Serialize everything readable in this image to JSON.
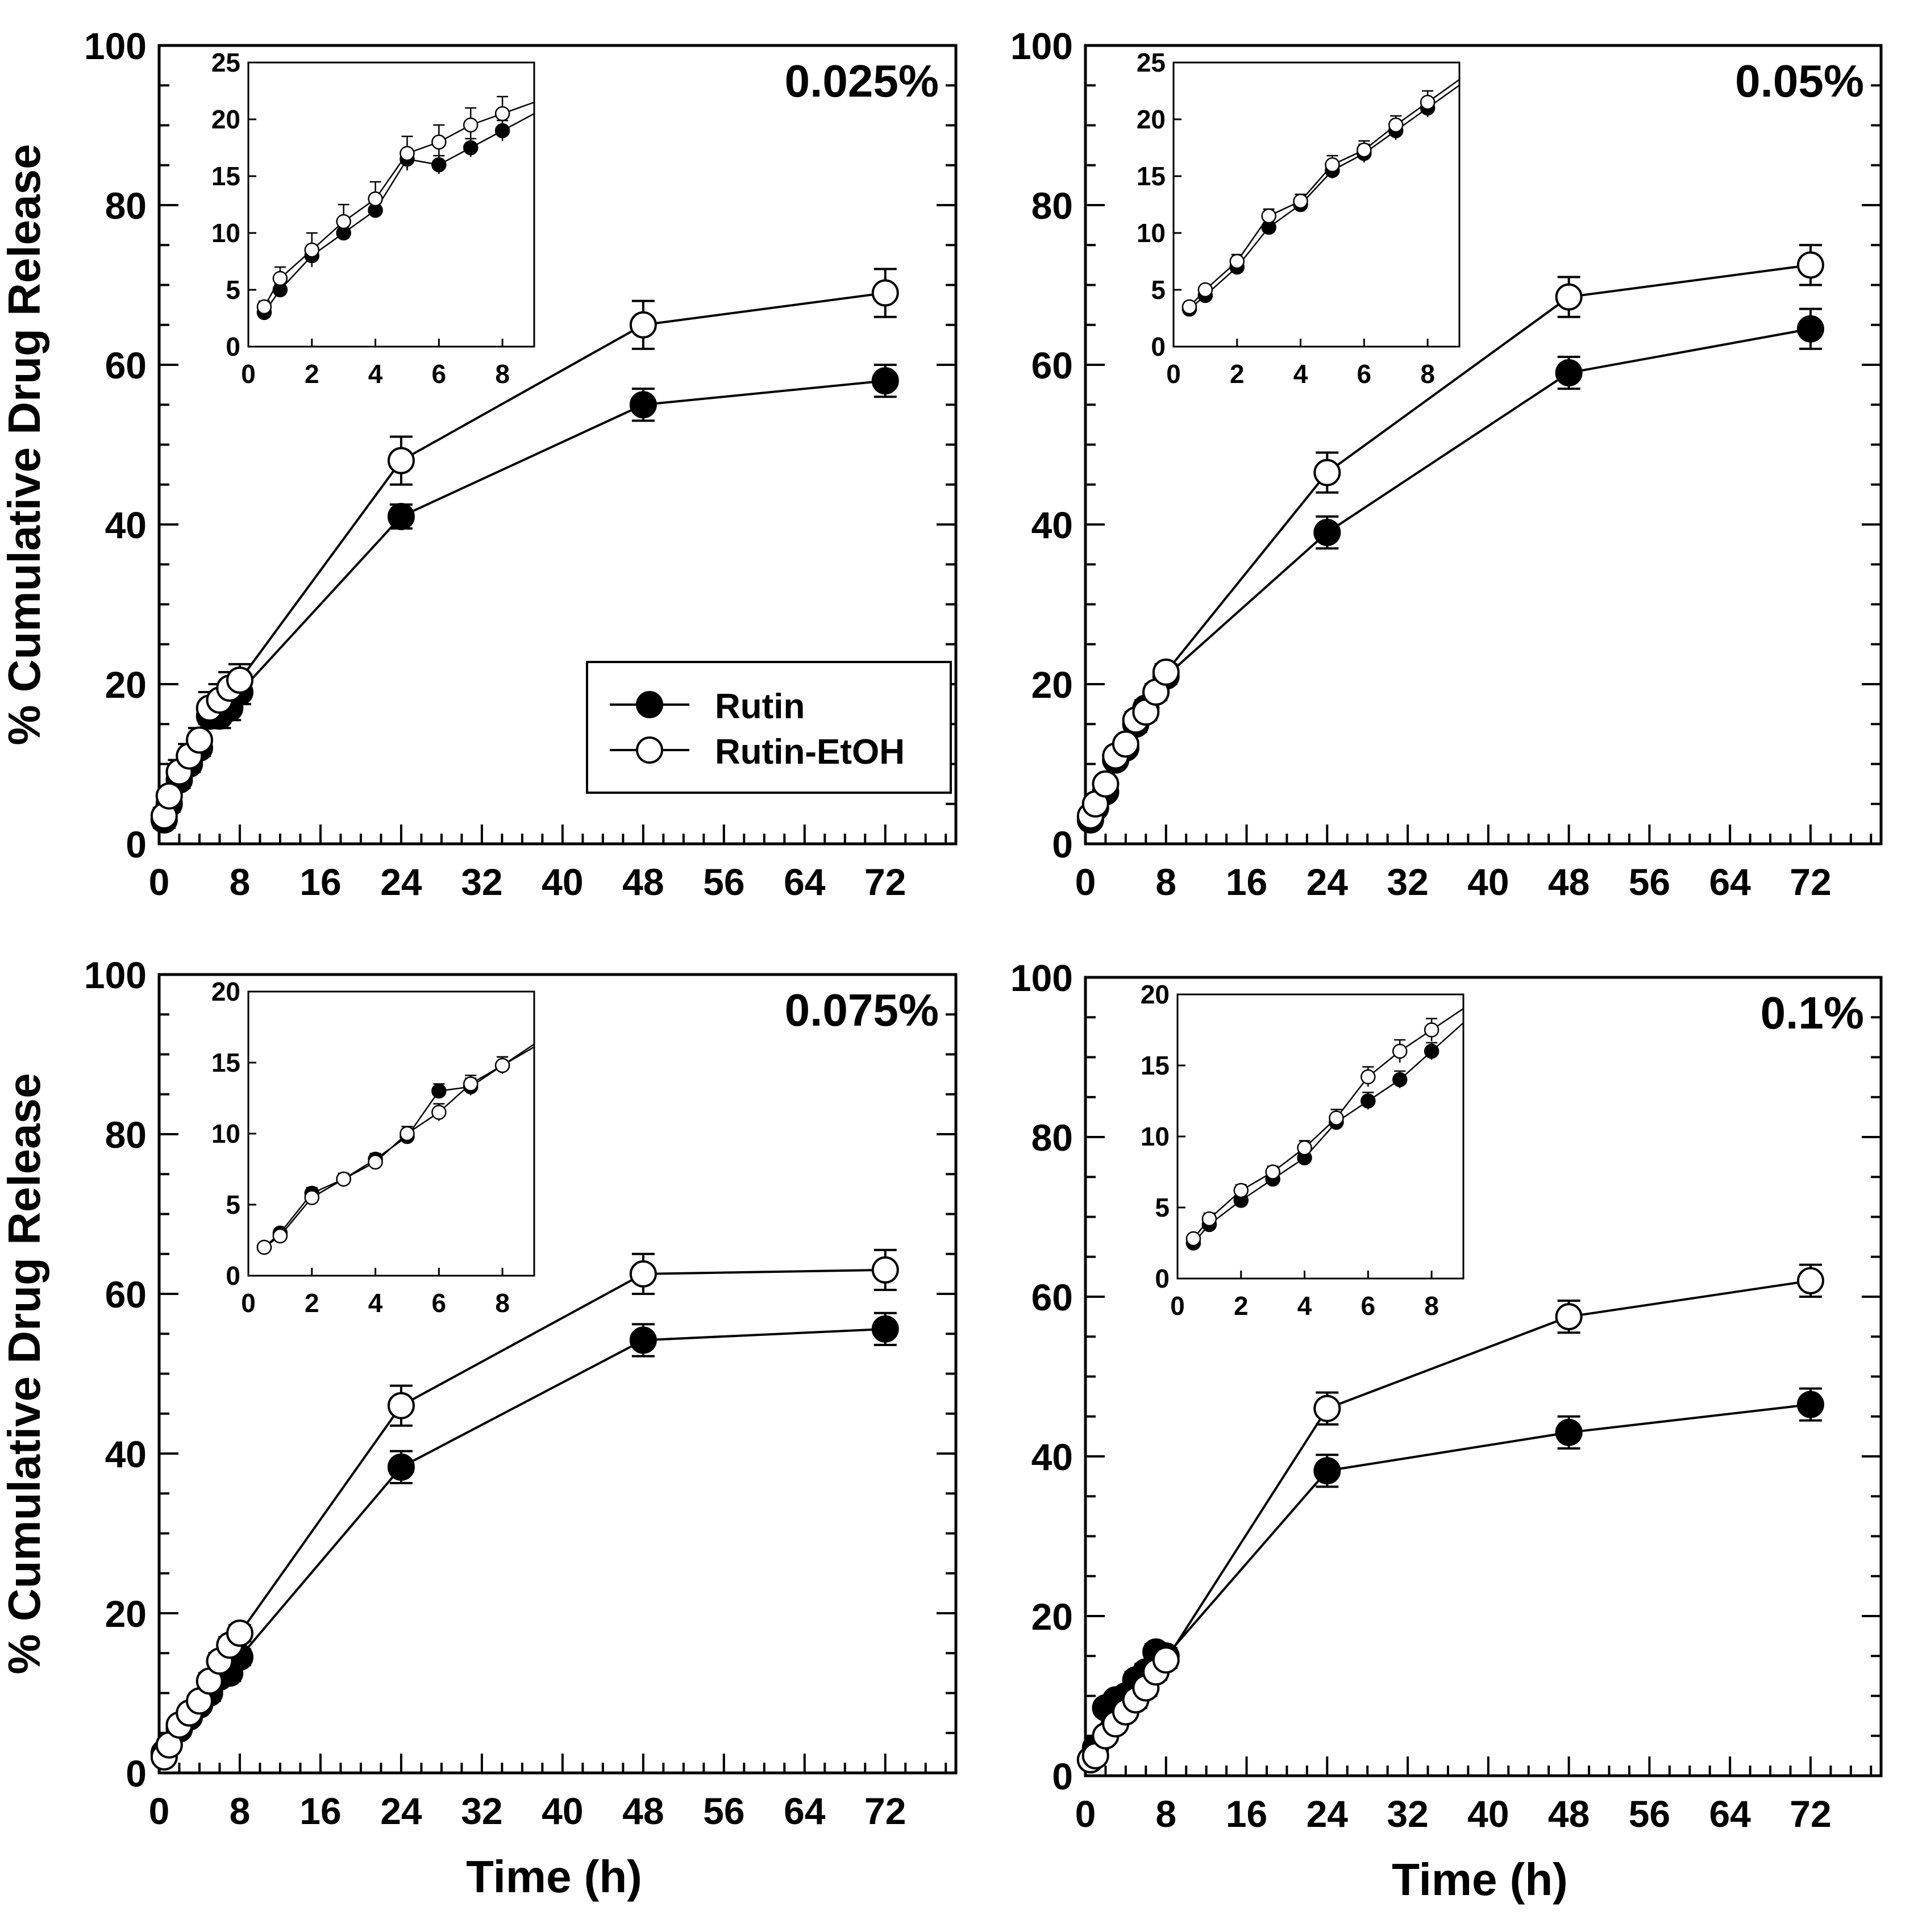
{
  "figure": {
    "y_axis_label": "% Cumulative Drug Release",
    "x_axis_label": "Time (h)",
    "legend": {
      "series": [
        "Rutin",
        "Rutin-EtOH"
      ],
      "placement": "inside-lower-right of top-left panel"
    }
  },
  "chart_data": [
    {
      "type": "line",
      "panel_label": "0.025%",
      "xlabel": "",
      "ylabel": "% Cumulative Drug Release",
      "xlim": [
        0,
        79
      ],
      "ylim": [
        0,
        100
      ],
      "xticks": [
        0,
        8,
        16,
        24,
        32,
        40,
        48,
        56,
        64,
        72
      ],
      "yticks": [
        0,
        20,
        40,
        60,
        80,
        100
      ],
      "series": [
        {
          "name": "Rutin",
          "marker": "filled-circle",
          "x": [
            0.5,
            1,
            2,
            3,
            4,
            5,
            6,
            7,
            8,
            24,
            48,
            72
          ],
          "y": [
            3,
            5,
            8,
            10,
            12,
            16,
            16,
            17,
            19,
            41,
            55,
            58
          ],
          "err": [
            1,
            1,
            1,
            1,
            1,
            1.5,
            1.5,
            1.5,
            1.5,
            1.5,
            2,
            2
          ]
        },
        {
          "name": "Rutin-EtOH",
          "marker": "open-circle",
          "x": [
            0.5,
            1,
            2,
            3,
            4,
            5,
            6,
            7,
            8,
            24,
            48,
            72
          ],
          "y": [
            3.5,
            6,
            9,
            11,
            13,
            17,
            18,
            19.5,
            20.5,
            48,
            65,
            69
          ],
          "err": [
            1,
            1,
            1.5,
            1.5,
            1.5,
            2,
            2,
            2,
            2,
            3,
            3,
            3
          ]
        }
      ],
      "inset": {
        "xlim": [
          0,
          9
        ],
        "ylim": [
          0,
          25
        ],
        "xticks": [
          0,
          2,
          4,
          6,
          8
        ],
        "yticks": [
          0,
          5,
          10,
          15,
          20,
          25
        ],
        "series": [
          {
            "name": "Rutin",
            "x": [
              0.5,
              1,
              2,
              3,
              4,
              5,
              6,
              7,
              8
            ],
            "y": [
              3,
              5,
              8,
              10,
              12,
              16.5,
              16,
              17.5,
              19
            ],
            "err": [
              0.4,
              0.5,
              0.6,
              0.6,
              0.6,
              0.8,
              0.8,
              0.8,
              0.9
            ],
            "trend": [
              0.2,
              0.8
            ]
          },
          {
            "name": "Rutin-EtOH",
            "x": [
              0.5,
              1,
              2,
              3,
              4,
              5,
              6,
              7,
              8
            ],
            "y": [
              3.5,
              6,
              8.5,
              11,
              13,
              17,
              18,
              19.5,
              20.5
            ],
            "err": [
              0.5,
              1,
              1.5,
              1.5,
              1.5,
              1.5,
              1.5,
              1.5,
              1.5
            ],
            "trend": [
              0.2,
              0.8
            ]
          }
        ]
      }
    },
    {
      "type": "line",
      "panel_label": "0.05%",
      "xlabel": "",
      "ylabel": "",
      "xlim": [
        0,
        79
      ],
      "ylim": [
        0,
        100
      ],
      "xticks": [
        0,
        8,
        16,
        24,
        32,
        40,
        48,
        56,
        64,
        72
      ],
      "yticks": [
        0,
        20,
        40,
        60,
        80,
        100
      ],
      "series": [
        {
          "name": "Rutin",
          "marker": "filled-circle",
          "x": [
            0.5,
            1,
            2,
            3,
            4,
            5,
            6,
            7,
            8,
            24,
            48,
            72
          ],
          "y": [
            3,
            4.5,
            6.5,
            10.5,
            12,
            15,
            17,
            19,
            21,
            39,
            59,
            64.5
          ],
          "err": [
            0.5,
            0.5,
            0.8,
            0.8,
            0.8,
            1,
            1,
            1,
            1,
            2,
            2,
            2.5
          ]
        },
        {
          "name": "Rutin-EtOH",
          "marker": "open-circle",
          "x": [
            0.5,
            1,
            2,
            3,
            4,
            5,
            6,
            7,
            8,
            24,
            48,
            72
          ],
          "y": [
            3.5,
            5,
            7.5,
            11,
            12.5,
            15.5,
            16.5,
            19,
            21.5,
            46.5,
            68.5,
            72.5
          ],
          "err": [
            0.5,
            0.5,
            0.8,
            0.8,
            0.8,
            1,
            1,
            1,
            1,
            2.5,
            2.5,
            2.5
          ]
        }
      ],
      "inset": {
        "xlim": [
          0,
          9
        ],
        "ylim": [
          0,
          25
        ],
        "xticks": [
          0,
          2,
          4,
          6,
          8
        ],
        "yticks": [
          0,
          5,
          10,
          15,
          20,
          25
        ],
        "series": [
          {
            "name": "Rutin",
            "x": [
              0.5,
              1,
              2,
              3,
              4,
              5,
              6,
              7,
              8
            ],
            "y": [
              3.3,
              4.5,
              7,
              10.5,
              12.5,
              15.5,
              17,
              19,
              21
            ],
            "err": [
              0.4,
              0.4,
              0.6,
              0.6,
              0.6,
              0.7,
              0.8,
              0.8,
              0.8
            ],
            "trend": [
              0.2,
              0.8
            ]
          },
          {
            "name": "Rutin-EtOH",
            "x": [
              0.5,
              1,
              2,
              3,
              4,
              5,
              6,
              7,
              8
            ],
            "y": [
              3.5,
              5,
              7.5,
              11.5,
              12.8,
              16,
              17.3,
              19.5,
              21.5
            ],
            "err": [
              0.4,
              0.4,
              0.6,
              0.6,
              0.6,
              0.8,
              0.8,
              0.8,
              1
            ],
            "trend": [
              0.2,
              0.8
            ]
          }
        ]
      }
    },
    {
      "type": "line",
      "panel_label": "0.075%",
      "xlabel": "Time (h)",
      "ylabel": "% Cumulative Drug Release",
      "xlim": [
        0,
        79
      ],
      "ylim": [
        0,
        100
      ],
      "xticks": [
        0,
        8,
        16,
        24,
        32,
        40,
        48,
        56,
        64,
        72
      ],
      "yticks": [
        0,
        20,
        40,
        60,
        80,
        100
      ],
      "series": [
        {
          "name": "Rutin",
          "marker": "filled-circle",
          "x": [
            0.5,
            1,
            2,
            3,
            4,
            5,
            6,
            7,
            8,
            24,
            48,
            72
          ],
          "y": [
            2.5,
            3.5,
            5.5,
            7,
            8.5,
            10,
            12,
            12.5,
            14.5,
            38.3,
            54.2,
            55.6
          ],
          "err": [
            0.5,
            0.5,
            0.8,
            0.8,
            0.8,
            1,
            1,
            1,
            1,
            2,
            2,
            2
          ]
        },
        {
          "name": "Rutin-EtOH",
          "marker": "open-circle",
          "x": [
            0.5,
            1,
            2,
            3,
            4,
            5,
            6,
            7,
            8,
            24,
            48,
            72
          ],
          "y": [
            2,
            3.5,
            6,
            7.5,
            9,
            11.5,
            14,
            16,
            17.5,
            46,
            62.5,
            63
          ],
          "err": [
            0.5,
            0.5,
            0.8,
            0.8,
            0.8,
            1,
            1,
            1,
            1,
            2.5,
            2.5,
            2.5
          ]
        }
      ],
      "inset": {
        "xlim": [
          0,
          9
        ],
        "ylim": [
          0,
          20
        ],
        "xticks": [
          0,
          2,
          4,
          6,
          8
        ],
        "yticks": [
          0,
          5,
          10,
          15,
          20
        ],
        "series": [
          {
            "name": "Rutin",
            "x": [
              0.5,
              1,
              2,
              3,
              4,
              5,
              6,
              7,
              8
            ],
            "y": [
              2,
              3,
              5.8,
              6.8,
              8.2,
              9.8,
              13,
              13.3,
              14.8
            ],
            "err": [
              0.3,
              0.3,
              0.4,
              0.4,
              0.4,
              0.5,
              0.5,
              0.6,
              0.6
            ],
            "trend": [
              0.2,
              0.8
            ]
          },
          {
            "name": "Rutin-EtOH",
            "x": [
              0.5,
              1,
              2,
              3,
              4,
              5,
              6,
              7,
              8
            ],
            "y": [
              2,
              2.8,
              5.5,
              6.8,
              8,
              10,
              11.5,
              13.5,
              14.8
            ],
            "err": [
              0.3,
              0.3,
              0.4,
              0.4,
              0.4,
              0.5,
              0.6,
              0.6,
              0.6
            ],
            "trend": [
              0.2,
              0.8
            ]
          }
        ]
      }
    },
    {
      "type": "line",
      "panel_label": "0.1%",
      "xlabel": "Time (h)",
      "ylabel": "",
      "xlim": [
        0,
        79
      ],
      "ylim": [
        0,
        100
      ],
      "xticks": [
        0,
        8,
        16,
        24,
        32,
        40,
        48,
        56,
        64,
        72
      ],
      "yticks": [
        0,
        20,
        40,
        60,
        80,
        100
      ],
      "series": [
        {
          "name": "Rutin",
          "marker": "filled-circle",
          "x": [
            0.5,
            1,
            2,
            3,
            4,
            5,
            6,
            7,
            8,
            24,
            48,
            72
          ],
          "y": [
            2,
            3.5,
            8.5,
            9.5,
            10,
            12,
            13,
            15.5,
            15,
            38.2,
            43,
            46.5
          ],
          "err": [
            0.5,
            0.5,
            0.8,
            0.8,
            0.8,
            1,
            1,
            1,
            1,
            2,
            2,
            2
          ]
        },
        {
          "name": "Rutin-EtOH",
          "marker": "open-circle",
          "x": [
            0.5,
            1,
            2,
            3,
            4,
            5,
            6,
            7,
            8,
            24,
            48,
            72
          ],
          "y": [
            2,
            2.5,
            5,
            6.5,
            8,
            9.5,
            11,
            13,
            14.5,
            46,
            57.5,
            62
          ],
          "err": [
            0.5,
            0.5,
            0.8,
            0.8,
            0.8,
            1,
            1,
            1,
            1,
            2,
            2,
            2
          ]
        }
      ],
      "inset": {
        "xlim": [
          0,
          9
        ],
        "ylim": [
          0,
          20
        ],
        "xticks": [
          0,
          2,
          4,
          6,
          8
        ],
        "yticks": [
          0,
          5,
          10,
          15,
          20
        ],
        "series": [
          {
            "name": "Rutin",
            "x": [
              0.5,
              1,
              2,
              3,
              4,
              5,
              6,
              7,
              8
            ],
            "y": [
              2.5,
              3.8,
              5.5,
              7,
              8.5,
              11,
              12.5,
              14,
              16
            ],
            "err": [
              0.3,
              0.4,
              0.4,
              0.4,
              0.5,
              0.5,
              0.6,
              0.6,
              0.6
            ],
            "trend": [
              0.2,
              0.8
            ]
          },
          {
            "name": "Rutin-EtOH",
            "x": [
              0.5,
              1,
              2,
              3,
              4,
              5,
              6,
              7,
              8
            ],
            "y": [
              2.8,
              4.2,
              6.2,
              7.5,
              9.2,
              11.3,
              14.2,
              16,
              17.5
            ],
            "err": [
              0.3,
              0.4,
              0.4,
              0.4,
              0.5,
              0.6,
              0.7,
              0.8,
              0.8
            ],
            "trend": [
              0.2,
              0.8
            ]
          }
        ]
      }
    }
  ]
}
